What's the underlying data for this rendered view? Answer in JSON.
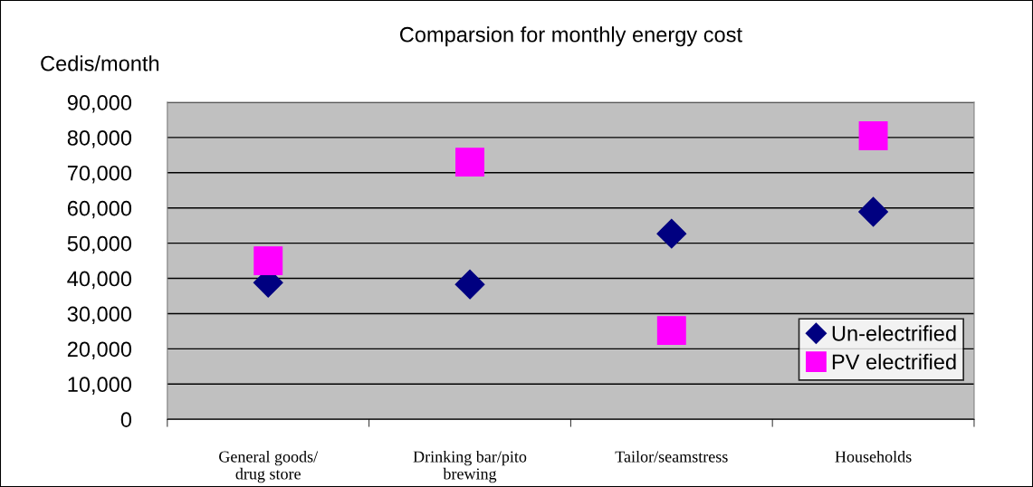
{
  "chart_data": {
    "type": "scatter",
    "title": "Comparsion for monthly energy cost",
    "ylabel": "Cedis/month",
    "categories": [
      "General goods/\ndrug store",
      "Drinking bar/pito\nbrewing",
      "Tailor/seamstress",
      "Households"
    ],
    "series": [
      {
        "name": "Un-electrified",
        "color": "#000080",
        "marker": "diamond",
        "values": [
          38800,
          38300,
          52700,
          58900
        ]
      },
      {
        "name": "PV electrified",
        "color": "#ff00ff",
        "marker": "square",
        "values": [
          45000,
          73000,
          25200,
          80500
        ]
      }
    ],
    "ylim": [
      0,
      90000
    ],
    "yticks": [
      0,
      {
        "value": 10000,
        "label": "10,000"
      },
      {
        "value": 20000,
        "label": "20,000"
      },
      {
        "value": 30000,
        "label": "30,000"
      },
      {
        "value": 40000,
        "label": "40,000"
      },
      {
        "value": 50000,
        "label": "50,000"
      },
      {
        "value": 60000,
        "label": "60,000"
      },
      {
        "value": 70000,
        "label": "70,000"
      },
      {
        "value": 80000,
        "label": "80,000"
      },
      {
        "value": 90000,
        "label": "90,000"
      }
    ],
    "grid": "y",
    "legend": "bottom right"
  }
}
